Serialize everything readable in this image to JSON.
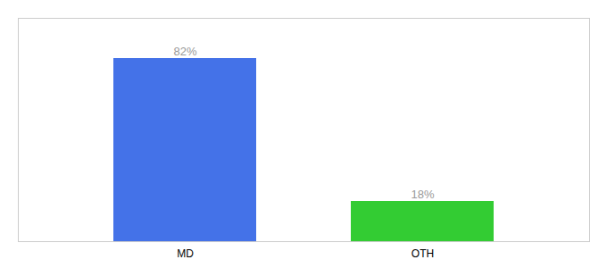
{
  "chart_data": {
    "type": "bar",
    "categories": [
      "MD",
      "OTH"
    ],
    "values": [
      82,
      18
    ],
    "value_labels": [
      "82%",
      "18%"
    ],
    "colors": [
      "#4472e8",
      "#33cc33"
    ],
    "ylim": [
      0,
      100
    ],
    "data_labels": true,
    "tick_labels": "x"
  }
}
